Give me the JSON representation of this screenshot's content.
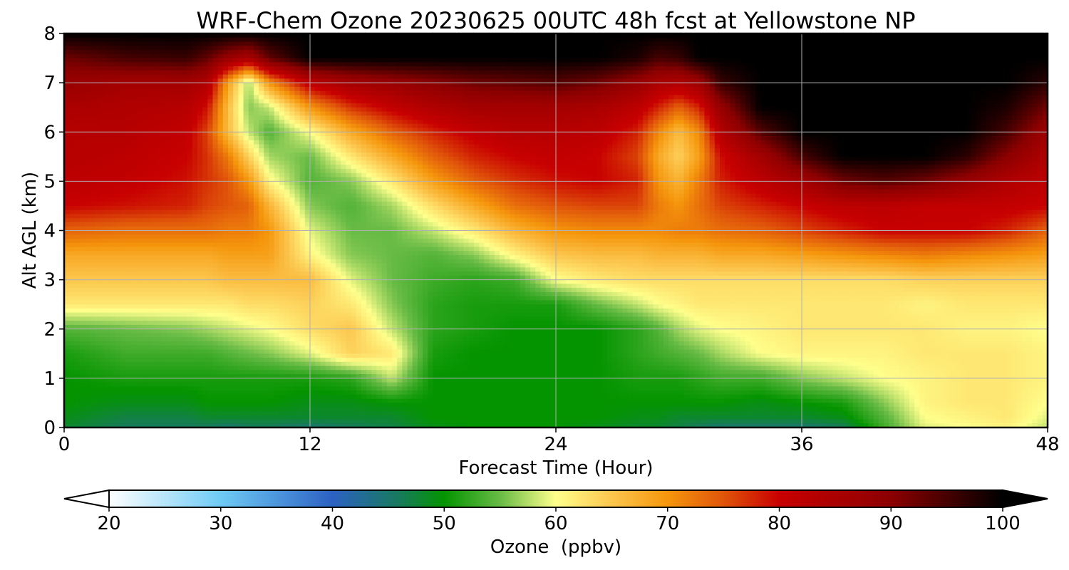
{
  "chart_data": {
    "type": "heatmap",
    "title": "WRF-Chem Ozone  20230625 00UTC 48h fcst at Yellowstone NP",
    "xlabel": "Forecast Time (Hour)",
    "ylabel": "Alt AGL (km)",
    "xlim": [
      0,
      48
    ],
    "ylim": [
      0,
      8
    ],
    "x_ticks": [
      "0",
      "12",
      "24",
      "36",
      "48"
    ],
    "y_ticks": [
      "0",
      "1",
      "2",
      "3",
      "4",
      "5",
      "6",
      "7",
      "8"
    ],
    "grid": true,
    "colorbar": {
      "label": "Ozone  (ppbv)",
      "orientation": "horizontal",
      "position": "bottom",
      "range": [
        20,
        100
      ],
      "extend": "both",
      "ticks": [
        "20",
        "30",
        "40",
        "50",
        "60",
        "70",
        "80",
        "90",
        "100"
      ],
      "stops": [
        {
          "value": 20,
          "color": "#ffffff"
        },
        {
          "value": 30,
          "color": "#6ecbf5"
        },
        {
          "value": 40,
          "color": "#2c61c3"
        },
        {
          "value": 46,
          "color": "#177a5c"
        },
        {
          "value": 50,
          "color": "#049400"
        },
        {
          "value": 55,
          "color": "#67bb45"
        },
        {
          "value": 60,
          "color": "#ffff8c"
        },
        {
          "value": 65,
          "color": "#fcc64e"
        },
        {
          "value": 70,
          "color": "#f5960c"
        },
        {
          "value": 75,
          "color": "#e0550a"
        },
        {
          "value": 80,
          "color": "#c80000"
        },
        {
          "value": 90,
          "color": "#8c0000"
        },
        {
          "value": 100,
          "color": "#000000"
        }
      ]
    },
    "x_hours": [
      0,
      3,
      6,
      7,
      8,
      9,
      10,
      12,
      14,
      16,
      18,
      20,
      22,
      24,
      26,
      28,
      29,
      30,
      31,
      32,
      34,
      36,
      38,
      40,
      42,
      44,
      46,
      48
    ],
    "y_km": [
      0,
      0.2,
      0.5,
      1,
      1.5,
      2,
      2.5,
      3,
      3.5,
      4,
      4.5,
      5,
      5.5,
      6,
      6.5,
      7,
      7.5,
      8
    ],
    "z_ppbv": [
      [
        48,
        46,
        46,
        46,
        45,
        46,
        46,
        45,
        46,
        47,
        49,
        50,
        50,
        50,
        49,
        48,
        48,
        47,
        46,
        45,
        45,
        45,
        46,
        53,
        59,
        60,
        61,
        58
      ],
      [
        49,
        47,
        47,
        48,
        48,
        48,
        48,
        48,
        48,
        48,
        50,
        50,
        50,
        50,
        50,
        49,
        49,
        48,
        48,
        48,
        48,
        48,
        49,
        54,
        60,
        61,
        62,
        59
      ],
      [
        50,
        49,
        49,
        50,
        50,
        50,
        50,
        49,
        49,
        50,
        50,
        50,
        50,
        50,
        50,
        50,
        50,
        50,
        50,
        50,
        49,
        50,
        51,
        56,
        61,
        62,
        62,
        60
      ],
      [
        50,
        51,
        51,
        51,
        51,
        51,
        51,
        51,
        52,
        58,
        50,
        50,
        50,
        50,
        50,
        51,
        51,
        51,
        52,
        53,
        53,
        56,
        58,
        60,
        61,
        62,
        62,
        61
      ],
      [
        51,
        53,
        53,
        53,
        54,
        55,
        56,
        59,
        64,
        62,
        51,
        50,
        50,
        50,
        50,
        52,
        53,
        54,
        55,
        57,
        60,
        61,
        61,
        61,
        62,
        62,
        62,
        61
      ],
      [
        54,
        55,
        56,
        57,
        58,
        59,
        60,
        63,
        65,
        58,
        52,
        51,
        50,
        50,
        50,
        52,
        54,
        57,
        59,
        60,
        61,
        62,
        62,
        62,
        62,
        61,
        61,
        60
      ],
      [
        62,
        62,
        62,
        62,
        62,
        63,
        63,
        64,
        62,
        56,
        52,
        51,
        51,
        51,
        55,
        58,
        60,
        61,
        62,
        62,
        62,
        62,
        62,
        62,
        61,
        62,
        62,
        62
      ],
      [
        65,
        65,
        65,
        65,
        66,
        66,
        66,
        66,
        59,
        55,
        53,
        52,
        53,
        60,
        62,
        63,
        63,
        63,
        63,
        63,
        63,
        63,
        63,
        63,
        64,
        64,
        64,
        64
      ],
      [
        68,
        68,
        68,
        68,
        69,
        69,
        69,
        61,
        56,
        55,
        54,
        56,
        61,
        65,
        66,
        66,
        67,
        67,
        67,
        68,
        68,
        69,
        70,
        71,
        72,
        71,
        70,
        69
      ],
      [
        74,
        73,
        73,
        73,
        72,
        72,
        70,
        59,
        55,
        55,
        58,
        62,
        67,
        70,
        71,
        71,
        71,
        72,
        72,
        73,
        74,
        76,
        78,
        80,
        80,
        80,
        78,
        74
      ],
      [
        80,
        79,
        78,
        76,
        75,
        74,
        67,
        56,
        54,
        57,
        63,
        68,
        73,
        75,
        76,
        76,
        72,
        70,
        73,
        76,
        78,
        80,
        82,
        82,
        81,
        81,
        81,
        80
      ],
      [
        82,
        81,
        79,
        77,
        75,
        70,
        61,
        54,
        56,
        62,
        69,
        74,
        77,
        79,
        80,
        78,
        70,
        67,
        72,
        78,
        82,
        86,
        92,
        94,
        92,
        88,
        84,
        82
      ],
      [
        83,
        82,
        80,
        77,
        72,
        64,
        57,
        55,
        62,
        68,
        74,
        78,
        80,
        81,
        80,
        76,
        68,
        64,
        69,
        79,
        86,
        95,
        100,
        100,
        100,
        97,
        90,
        84
      ],
      [
        83,
        83,
        81,
        76,
        66,
        58,
        54,
        60,
        68,
        74,
        78,
        81,
        83,
        83,
        82,
        78,
        71,
        66,
        71,
        83,
        94,
        100,
        100,
        100,
        100,
        100,
        95,
        87
      ],
      [
        85,
        84,
        83,
        79,
        66,
        56,
        58,
        70,
        77,
        81,
        84,
        86,
        86,
        86,
        85,
        82,
        78,
        74,
        78,
        88,
        100,
        100,
        100,
        100,
        100,
        100,
        98,
        92
      ],
      [
        88,
        86,
        86,
        84,
        69,
        57,
        70,
        82,
        86,
        88,
        90,
        92,
        93,
        94,
        92,
        88,
        85,
        84,
        87,
        96,
        100,
        100,
        100,
        100,
        100,
        100,
        100,
        97
      ],
      [
        92,
        95,
        96,
        93,
        88,
        85,
        93,
        100,
        100,
        100,
        100,
        100,
        100,
        100,
        100,
        98,
        95,
        96,
        100,
        100,
        100,
        100,
        100,
        100,
        100,
        100,
        100,
        100
      ],
      [
        100,
        100,
        100,
        100,
        100,
        100,
        100,
        100,
        100,
        100,
        100,
        100,
        100,
        100,
        100,
        100,
        100,
        100,
        100,
        100,
        100,
        100,
        100,
        100,
        100,
        100,
        100,
        100
      ]
    ]
  }
}
